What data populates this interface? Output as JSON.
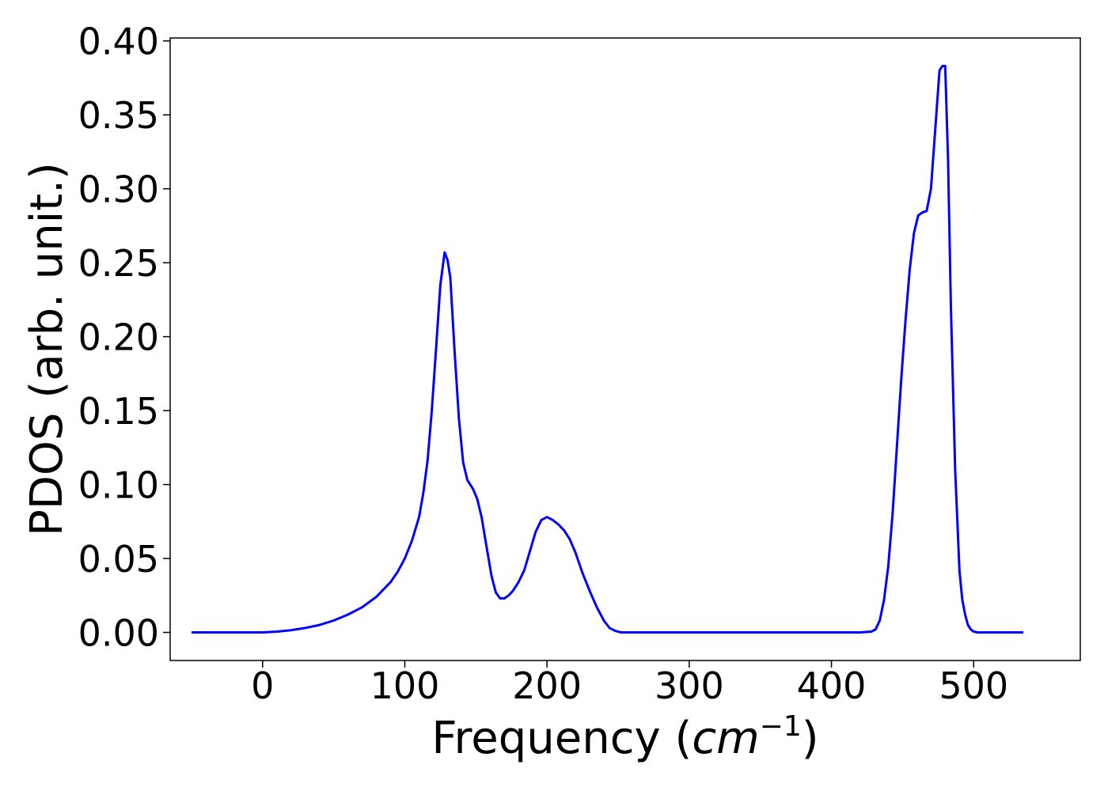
{
  "chart_data": {
    "type": "line",
    "title": "",
    "xlabel": "Frequency (",
    "xlabel_math": "cm",
    "xlabel_sup": "−1",
    "xlabel_end": ")",
    "ylabel": "PDOS (arb. unit.)",
    "xlim": [
      -65,
      575
    ],
    "ylim": [
      -0.019,
      0.402
    ],
    "xticks": [
      0,
      100,
      200,
      300,
      400,
      500
    ],
    "xtick_labels": [
      "0",
      "100",
      "200",
      "300",
      "400",
      "500"
    ],
    "yticks": [
      0.0,
      0.05,
      0.1,
      0.15,
      0.2,
      0.25,
      0.3,
      0.35,
      0.4
    ],
    "ytick_labels": [
      "0.00",
      "0.05",
      "0.10",
      "0.15",
      "0.20",
      "0.25",
      "0.30",
      "0.35",
      "0.40"
    ],
    "grid": false,
    "legend": "none",
    "series": [
      {
        "color": "#0000ff",
        "x": [
          -50,
          -30,
          -10,
          0,
          10,
          20,
          30,
          40,
          50,
          60,
          70,
          80,
          90,
          95,
          100,
          105,
          110,
          113,
          116,
          119,
          122,
          125,
          128,
          130,
          132,
          135,
          138,
          141,
          144,
          148,
          151,
          154,
          158,
          161,
          164,
          167,
          170,
          173,
          176,
          180,
          184,
          188,
          192,
          196,
          200,
          204,
          208,
          212,
          216,
          220,
          225,
          230,
          235,
          240,
          244,
          248,
          252,
          260,
          280,
          300,
          330,
          360,
          390,
          420,
          428,
          431,
          434,
          437,
          440,
          443,
          446,
          449,
          452,
          455,
          458,
          461,
          464,
          467,
          470,
          473,
          476,
          478,
          480,
          482,
          484,
          487,
          490,
          492,
          494,
          496,
          498,
          500,
          503,
          510,
          520,
          535
        ],
        "y": [
          0.0,
          0.0,
          0.0,
          0.0,
          0.0005,
          0.0015,
          0.003,
          0.005,
          0.008,
          0.012,
          0.017,
          0.024,
          0.034,
          0.041,
          0.05,
          0.062,
          0.078,
          0.094,
          0.116,
          0.15,
          0.192,
          0.235,
          0.257,
          0.252,
          0.24,
          0.19,
          0.145,
          0.115,
          0.103,
          0.097,
          0.09,
          0.078,
          0.055,
          0.038,
          0.027,
          0.023,
          0.023,
          0.025,
          0.028,
          0.034,
          0.042,
          0.055,
          0.068,
          0.076,
          0.078,
          0.076,
          0.073,
          0.069,
          0.063,
          0.054,
          0.04,
          0.028,
          0.017,
          0.008,
          0.003,
          0.001,
          0.0,
          0.0,
          0.0,
          0.0,
          0.0,
          0.0,
          0.0,
          0.0,
          0.0005,
          0.002,
          0.008,
          0.022,
          0.045,
          0.08,
          0.125,
          0.17,
          0.21,
          0.245,
          0.27,
          0.282,
          0.284,
          0.285,
          0.3,
          0.34,
          0.38,
          0.383,
          0.383,
          0.32,
          0.22,
          0.11,
          0.042,
          0.022,
          0.012,
          0.005,
          0.002,
          0.0005,
          0.0,
          0.0,
          0.0,
          0.0
        ]
      }
    ]
  }
}
